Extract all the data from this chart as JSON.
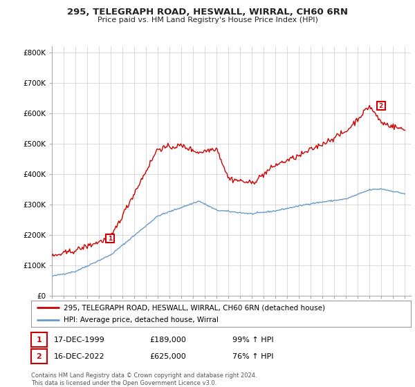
{
  "title_line1": "295, TELEGRAPH ROAD, HESWALL, WIRRAL, CH60 6RN",
  "title_line2": "Price paid vs. HM Land Registry's House Price Index (HPI)",
  "ylabel_ticks": [
    "£0",
    "£100K",
    "£200K",
    "£300K",
    "£400K",
    "£500K",
    "£600K",
    "£700K",
    "£800K"
  ],
  "ytick_values": [
    0,
    100000,
    200000,
    300000,
    400000,
    500000,
    600000,
    700000,
    800000
  ],
  "ylim": [
    0,
    820000
  ],
  "xlim_start": 1995.0,
  "xlim_end": 2025.5,
  "legend_line1": "295, TELEGRAPH ROAD, HESWALL, WIRRAL, CH60 6RN (detached house)",
  "legend_line2": "HPI: Average price, detached house, Wirral",
  "marker1_label": "1",
  "marker1_date": "17-DEC-1999",
  "marker1_price": "£189,000",
  "marker1_hpi": "99% ↑ HPI",
  "marker1_x": 1999.96,
  "marker1_y": 189000,
  "marker2_label": "2",
  "marker2_date": "16-DEC-2022",
  "marker2_price": "£625,000",
  "marker2_hpi": "76% ↑ HPI",
  "marker2_x": 2022.96,
  "marker2_y": 625000,
  "footer": "Contains HM Land Registry data © Crown copyright and database right 2024.\nThis data is licensed under the Open Government Licence v3.0.",
  "red_color": "#cc0000",
  "blue_color": "#6699cc",
  "grid_color": "#cccccc",
  "background_color": "#ffffff",
  "sale_points_x": [
    1999.96,
    2022.96
  ],
  "sale_points_y": [
    189000,
    625000
  ],
  "sale_labels": [
    "1",
    "2"
  ]
}
